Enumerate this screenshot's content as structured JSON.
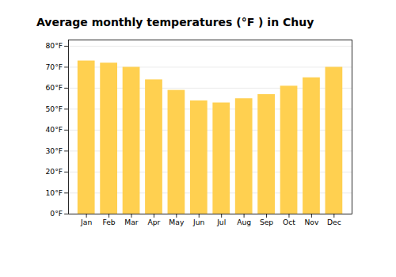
{
  "chart_data": {
    "type": "bar",
    "title": "Average monthly temperatures (°F ) in Chuy",
    "categories": [
      "Jan",
      "Feb",
      "Mar",
      "Apr",
      "May",
      "Jun",
      "Jul",
      "Aug",
      "Sep",
      "Oct",
      "Nov",
      "Dec"
    ],
    "values": [
      73,
      72,
      70,
      64,
      59,
      54,
      53,
      55,
      57,
      61,
      65,
      70
    ],
    "color": "#FFD050",
    "ylim": [
      0,
      83
    ],
    "yticks": [
      {
        "value": 0,
        "label": "0°F"
      },
      {
        "value": 10,
        "label": "10°F"
      },
      {
        "value": 20,
        "label": "20°F"
      },
      {
        "value": 30,
        "label": "30°F"
      },
      {
        "value": 40,
        "label": "40°F"
      },
      {
        "value": 50,
        "label": "50°F"
      },
      {
        "value": 60,
        "label": "60°F"
      },
      {
        "value": 70,
        "label": "70°F"
      },
      {
        "value": 80,
        "label": "80°F"
      }
    ],
    "grid": true
  }
}
